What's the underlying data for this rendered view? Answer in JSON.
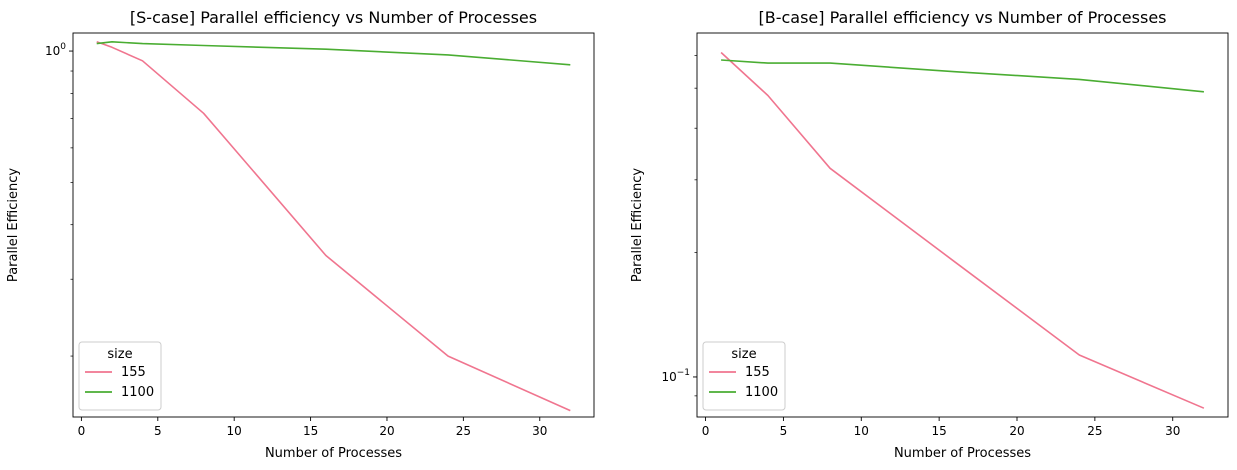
{
  "chart_data": [
    {
      "type": "line",
      "title": "[S-case] Parallel efficiency vs Number of Processes",
      "xlabel": "Number of Processes",
      "ylabel": "Parallel Efficiency",
      "yscale": "log",
      "xlim": [
        -0.55,
        33.55
      ],
      "ylim": [
        0.145,
        1.1
      ],
      "xticks": [
        0,
        5,
        10,
        15,
        20,
        25,
        30
      ],
      "yticks": [
        {
          "value": 1.0,
          "label": "10",
          "exp": "0"
        }
      ],
      "minor_yticks": [
        0.2,
        0.3,
        0.4,
        0.5,
        0.6,
        0.7,
        0.8,
        0.9
      ],
      "grid": false,
      "legend": {
        "title": "size",
        "placement": "lower-left"
      },
      "series": [
        {
          "name": "155",
          "color": "#f0758f",
          "x": [
            1,
            2,
            4,
            8,
            16,
            24,
            32
          ],
          "y": [
            1.05,
            1.02,
            0.95,
            0.72,
            0.34,
            0.2,
            0.15
          ]
        },
        {
          "name": "1100",
          "color": "#4aad32",
          "x": [
            1,
            2,
            4,
            8,
            16,
            24,
            32
          ],
          "y": [
            1.04,
            1.05,
            1.04,
            1.03,
            1.01,
            0.98,
            0.93
          ]
        }
      ]
    },
    {
      "type": "line",
      "title": "[B-case] Parallel efficiency vs Number of Processes",
      "xlabel": "Number of Processes",
      "ylabel": "Parallel Efficiency",
      "yscale": "log",
      "xlim": [
        -0.55,
        33.55
      ],
      "ylim": [
        0.08,
        0.68
      ],
      "xticks": [
        0,
        5,
        10,
        15,
        20,
        25,
        30
      ],
      "yticks": [
        {
          "value": 0.1,
          "label": "10",
          "exp": "−1"
        }
      ],
      "minor_yticks": [
        0.09,
        0.2,
        0.3,
        0.4,
        0.5,
        0.6
      ],
      "grid": false,
      "legend": {
        "title": "size",
        "placement": "lower-left"
      },
      "series": [
        {
          "name": "155",
          "color": "#f0758f",
          "x": [
            1,
            4,
            8,
            16,
            24,
            32
          ],
          "y": [
            0.61,
            0.48,
            0.32,
            0.19,
            0.113,
            0.084
          ]
        },
        {
          "name": "1100",
          "color": "#4aad32",
          "x": [
            1,
            4,
            8,
            16,
            24,
            32
          ],
          "y": [
            0.585,
            0.575,
            0.575,
            0.548,
            0.525,
            0.49
          ]
        }
      ]
    }
  ]
}
